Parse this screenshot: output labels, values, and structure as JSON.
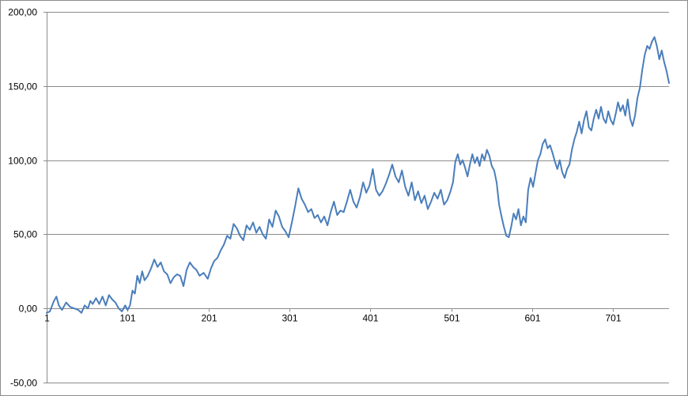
{
  "chart_data": {
    "type": "line",
    "title": "",
    "xlabel": "",
    "ylabel": "",
    "grid": true,
    "legend": "none",
    "ylim": [
      -50,
      200
    ],
    "xlim": [
      1,
      770
    ],
    "y_ticks": [
      -50,
      0,
      50,
      100,
      150,
      200
    ],
    "y_tick_labels": [
      "-50,00",
      "0,00",
      "50,00",
      "100,00",
      "150,00",
      "200,00"
    ],
    "x_ticks": [
      1,
      101,
      201,
      301,
      401,
      501,
      601,
      701
    ],
    "x_tick_labels": [
      "1",
      "101",
      "201",
      "301",
      "401",
      "501",
      "601",
      "701"
    ],
    "colors": {
      "line": "#4a7ebb",
      "grid": "#8c8c8c"
    },
    "series": [
      {
        "points": [
          [
            1,
            -3
          ],
          [
            5,
            -2
          ],
          [
            10,
            5
          ],
          [
            13,
            8
          ],
          [
            16,
            2
          ],
          [
            20,
            -1
          ],
          [
            25,
            4
          ],
          [
            30,
            1
          ],
          [
            35,
            0
          ],
          [
            40,
            -1
          ],
          [
            44,
            -3
          ],
          [
            48,
            2
          ],
          [
            52,
            0
          ],
          [
            55,
            5
          ],
          [
            58,
            3
          ],
          [
            62,
            7
          ],
          [
            66,
            3
          ],
          [
            70,
            8
          ],
          [
            74,
            2
          ],
          [
            78,
            9
          ],
          [
            82,
            6
          ],
          [
            86,
            4
          ],
          [
            90,
            0
          ],
          [
            94,
            -2
          ],
          [
            98,
            2
          ],
          [
            101,
            -1
          ],
          [
            104,
            2
          ],
          [
            107,
            12
          ],
          [
            110,
            10
          ],
          [
            113,
            22
          ],
          [
            116,
            17
          ],
          [
            119,
            25
          ],
          [
            122,
            19
          ],
          [
            126,
            22
          ],
          [
            130,
            27
          ],
          [
            134,
            33
          ],
          [
            138,
            28
          ],
          [
            142,
            31
          ],
          [
            146,
            25
          ],
          [
            150,
            23
          ],
          [
            154,
            17
          ],
          [
            158,
            21
          ],
          [
            162,
            23
          ],
          [
            166,
            22
          ],
          [
            170,
            15
          ],
          [
            174,
            26
          ],
          [
            178,
            31
          ],
          [
            182,
            28
          ],
          [
            186,
            26
          ],
          [
            190,
            22
          ],
          [
            195,
            24
          ],
          [
            200,
            20
          ],
          [
            204,
            27
          ],
          [
            208,
            32
          ],
          [
            212,
            34
          ],
          [
            216,
            39
          ],
          [
            220,
            43
          ],
          [
            224,
            49
          ],
          [
            228,
            47
          ],
          [
            232,
            57
          ],
          [
            236,
            54
          ],
          [
            240,
            49
          ],
          [
            244,
            46
          ],
          [
            248,
            56
          ],
          [
            252,
            53
          ],
          [
            256,
            58
          ],
          [
            260,
            51
          ],
          [
            264,
            55
          ],
          [
            268,
            50
          ],
          [
            272,
            47
          ],
          [
            276,
            60
          ],
          [
            280,
            55
          ],
          [
            284,
            66
          ],
          [
            288,
            62
          ],
          [
            292,
            55
          ],
          [
            296,
            52
          ],
          [
            300,
            48
          ],
          [
            304,
            58
          ],
          [
            308,
            69
          ],
          [
            312,
            81
          ],
          [
            316,
            74
          ],
          [
            320,
            70
          ],
          [
            324,
            65
          ],
          [
            328,
            67
          ],
          [
            332,
            61
          ],
          [
            336,
            63
          ],
          [
            340,
            58
          ],
          [
            344,
            62
          ],
          [
            348,
            56
          ],
          [
            352,
            65
          ],
          [
            356,
            72
          ],
          [
            360,
            63
          ],
          [
            364,
            66
          ],
          [
            368,
            65
          ],
          [
            372,
            72
          ],
          [
            376,
            80
          ],
          [
            380,
            72
          ],
          [
            384,
            68
          ],
          [
            388,
            75
          ],
          [
            392,
            85
          ],
          [
            396,
            78
          ],
          [
            400,
            83
          ],
          [
            404,
            94
          ],
          [
            408,
            80
          ],
          [
            412,
            76
          ],
          [
            416,
            79
          ],
          [
            420,
            84
          ],
          [
            424,
            90
          ],
          [
            428,
            97
          ],
          [
            432,
            89
          ],
          [
            436,
            85
          ],
          [
            440,
            93
          ],
          [
            444,
            82
          ],
          [
            448,
            76
          ],
          [
            452,
            85
          ],
          [
            456,
            73
          ],
          [
            460,
            79
          ],
          [
            464,
            71
          ],
          [
            468,
            76
          ],
          [
            472,
            67
          ],
          [
            476,
            72
          ],
          [
            480,
            78
          ],
          [
            484,
            74
          ],
          [
            488,
            80
          ],
          [
            492,
            70
          ],
          [
            496,
            73
          ],
          [
            500,
            79
          ],
          [
            503,
            85
          ],
          [
            506,
            99
          ],
          [
            509,
            104
          ],
          [
            512,
            97
          ],
          [
            515,
            100
          ],
          [
            518,
            95
          ],
          [
            521,
            89
          ],
          [
            524,
            97
          ],
          [
            527,
            104
          ],
          [
            530,
            98
          ],
          [
            533,
            102
          ],
          [
            536,
            96
          ],
          [
            539,
            104
          ],
          [
            542,
            100
          ],
          [
            545,
            107
          ],
          [
            548,
            103
          ],
          [
            551,
            96
          ],
          [
            554,
            93
          ],
          [
            557,
            85
          ],
          [
            560,
            70
          ],
          [
            563,
            62
          ],
          [
            566,
            55
          ],
          [
            569,
            49
          ],
          [
            572,
            48
          ],
          [
            575,
            55
          ],
          [
            578,
            64
          ],
          [
            581,
            60
          ],
          [
            584,
            67
          ],
          [
            587,
            56
          ],
          [
            590,
            62
          ],
          [
            593,
            58
          ],
          [
            596,
            80
          ],
          [
            599,
            88
          ],
          [
            602,
            82
          ],
          [
            605,
            91
          ],
          [
            608,
            100
          ],
          [
            611,
            104
          ],
          [
            614,
            111
          ],
          [
            617,
            114
          ],
          [
            620,
            108
          ],
          [
            623,
            110
          ],
          [
            626,
            105
          ],
          [
            629,
            99
          ],
          [
            632,
            94
          ],
          [
            635,
            100
          ],
          [
            638,
            92
          ],
          [
            641,
            88
          ],
          [
            644,
            94
          ],
          [
            647,
            97
          ],
          [
            650,
            107
          ],
          [
            653,
            114
          ],
          [
            656,
            119
          ],
          [
            659,
            126
          ],
          [
            662,
            118
          ],
          [
            665,
            127
          ],
          [
            668,
            133
          ],
          [
            671,
            122
          ],
          [
            674,
            120
          ],
          [
            677,
            128
          ],
          [
            680,
            134
          ],
          [
            683,
            128
          ],
          [
            686,
            136
          ],
          [
            689,
            128
          ],
          [
            692,
            125
          ],
          [
            695,
            133
          ],
          [
            698,
            127
          ],
          [
            701,
            124
          ],
          [
            704,
            131
          ],
          [
            707,
            139
          ],
          [
            710,
            133
          ],
          [
            713,
            137
          ],
          [
            716,
            130
          ],
          [
            719,
            141
          ],
          [
            722,
            128
          ],
          [
            725,
            123
          ],
          [
            728,
            130
          ],
          [
            731,
            142
          ],
          [
            734,
            149
          ],
          [
            737,
            161
          ],
          [
            740,
            171
          ],
          [
            743,
            177
          ],
          [
            746,
            175
          ],
          [
            749,
            180
          ],
          [
            752,
            183
          ],
          [
            755,
            177
          ],
          [
            758,
            168
          ],
          [
            761,
            174
          ],
          [
            764,
            166
          ],
          [
            767,
            160
          ],
          [
            770,
            152
          ]
        ]
      }
    ]
  }
}
